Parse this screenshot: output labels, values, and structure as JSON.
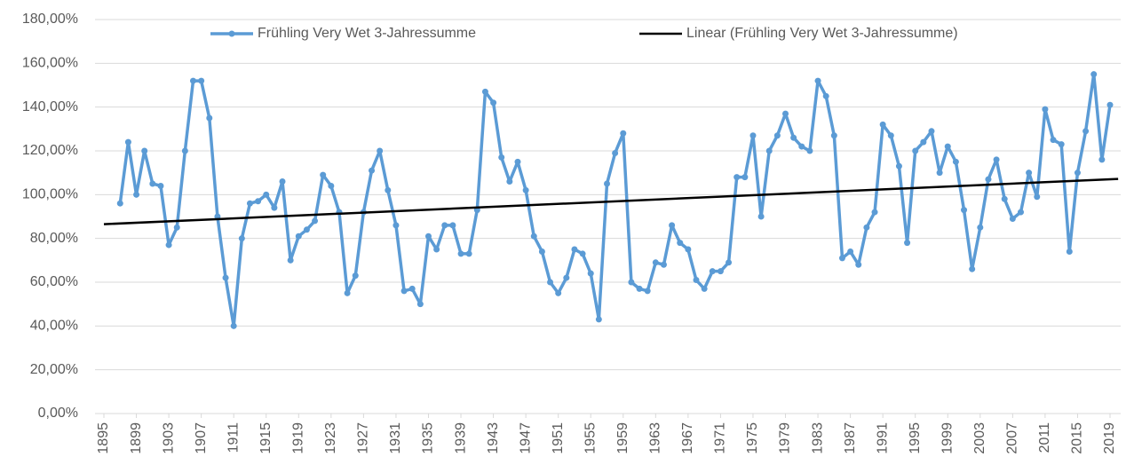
{
  "chart_data": {
    "type": "line",
    "x": [
      1897,
      1898,
      1899,
      1900,
      1901,
      1902,
      1903,
      1904,
      1905,
      1906,
      1907,
      1908,
      1909,
      1910,
      1911,
      1912,
      1913,
      1914,
      1915,
      1916,
      1917,
      1918,
      1919,
      1920,
      1921,
      1922,
      1923,
      1924,
      1925,
      1926,
      1927,
      1928,
      1929,
      1930,
      1931,
      1932,
      1933,
      1934,
      1935,
      1936,
      1937,
      1938,
      1939,
      1940,
      1941,
      1942,
      1943,
      1944,
      1945,
      1946,
      1947,
      1948,
      1949,
      1950,
      1951,
      1952,
      1953,
      1954,
      1955,
      1956,
      1957,
      1958,
      1959,
      1960,
      1961,
      1962,
      1963,
      1964,
      1965,
      1966,
      1967,
      1968,
      1969,
      1970,
      1971,
      1972,
      1973,
      1974,
      1975,
      1976,
      1977,
      1978,
      1979,
      1980,
      1981,
      1982,
      1983,
      1984,
      1985,
      1986,
      1987,
      1988,
      1989,
      1990,
      1991,
      1992,
      1993,
      1994,
      1995,
      1996,
      1997,
      1998,
      1999,
      2000,
      2001,
      2002,
      2003,
      2004,
      2005,
      2006,
      2007,
      2008,
      2009,
      2010,
      2011,
      2012,
      2013,
      2014,
      2015,
      2016,
      2017,
      2018,
      2019
    ],
    "series": [
      {
        "name": "Frühling Very Wet 3-Jahressumme",
        "color": "#5b9bd5",
        "markers": true,
        "values": [
          96,
          124,
          100,
          120,
          105,
          104,
          77,
          85,
          120,
          152,
          152,
          135,
          90,
          62,
          40,
          80,
          96,
          97,
          100,
          94,
          106,
          70,
          81,
          84,
          88,
          109,
          104,
          92,
          55,
          63,
          92,
          111,
          120,
          102,
          86,
          56,
          57,
          50,
          81,
          75,
          86,
          86,
          73,
          73,
          93,
          147,
          142,
          117,
          106,
          115,
          102,
          81,
          74,
          60,
          55,
          62,
          75,
          73,
          64,
          43,
          105,
          119,
          128,
          60,
          57,
          56,
          69,
          68,
          86,
          78,
          75,
          61,
          57,
          65,
          65,
          69,
          108,
          108,
          127,
          90,
          120,
          127,
          137,
          126,
          122,
          120,
          152,
          145,
          127,
          71,
          74,
          68,
          85,
          92,
          132,
          127,
          113,
          78,
          120,
          124,
          129,
          110,
          122,
          115,
          93,
          66,
          85,
          107,
          116,
          98,
          89,
          92,
          110,
          99,
          139,
          125,
          123,
          74,
          110,
          129,
          155,
          116,
          141
        ]
      },
      {
        "name": "Linear (Frühling Very Wet 3-Jahressumme)",
        "color": "#000000",
        "markers": false,
        "x": [
          1895,
          2020
        ],
        "values": [
          86.5,
          107.2
        ]
      }
    ],
    "xlim": [
      1895,
      2019
    ],
    "xticks": [
      1895,
      1899,
      1903,
      1907,
      1911,
      1915,
      1919,
      1923,
      1927,
      1931,
      1935,
      1939,
      1943,
      1947,
      1951,
      1955,
      1959,
      1963,
      1967,
      1971,
      1975,
      1979,
      1983,
      1987,
      1991,
      1995,
      1999,
      2003,
      2007,
      2011,
      2015,
      2019
    ],
    "ylim": [
      0,
      180
    ],
    "yticks": [
      {
        "value": 0,
        "label": "0,00%"
      },
      {
        "value": 20,
        "label": "20,00%"
      },
      {
        "value": 40,
        "label": "40,00%"
      },
      {
        "value": 60,
        "label": "60,00%"
      },
      {
        "value": 80,
        "label": "80,00%"
      },
      {
        "value": 100,
        "label": "100,00%"
      },
      {
        "value": 120,
        "label": "120,00%"
      },
      {
        "value": 140,
        "label": "140,00%"
      },
      {
        "value": 160,
        "label": "160,00%"
      },
      {
        "value": 180,
        "label": "180,00%"
      }
    ],
    "grid": true
  }
}
